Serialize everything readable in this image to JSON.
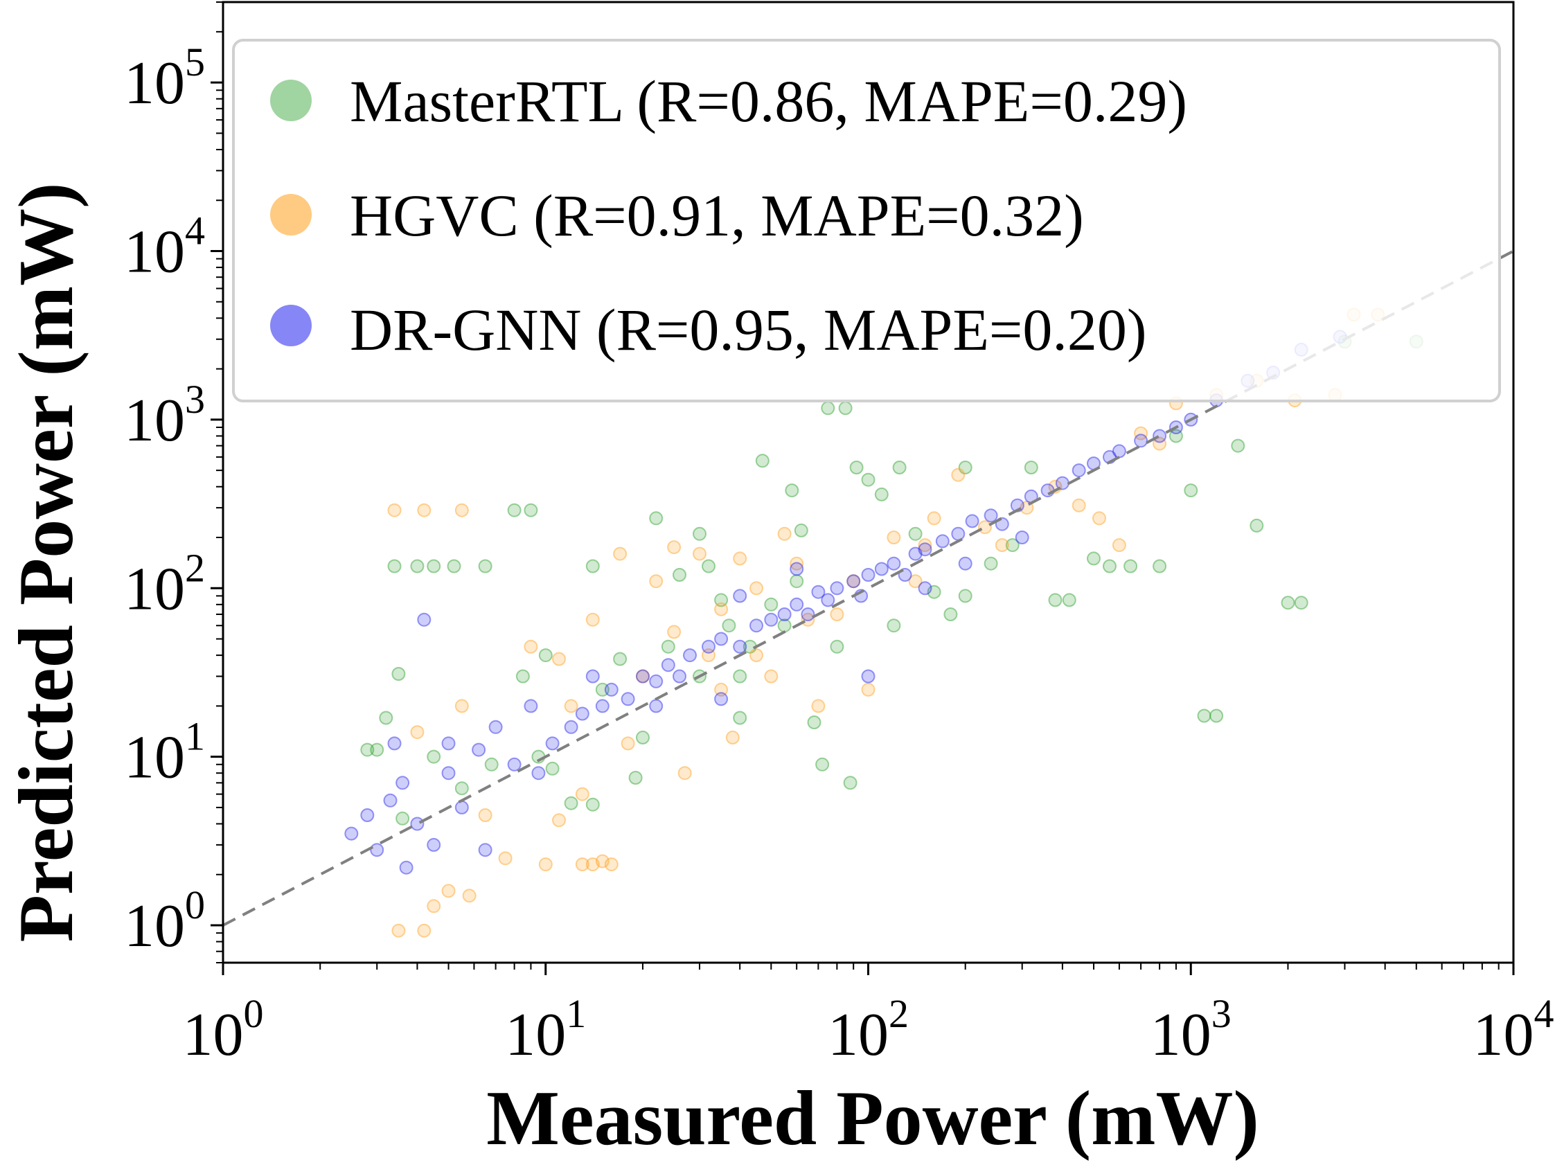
{
  "chart_data": {
    "type": "scatter",
    "xscale": "log",
    "yscale": "log",
    "xlabel": "Measured Power (mW)",
    "ylabel": "Predicted Power (mW)",
    "xlim": [
      1,
      10000
    ],
    "ylim": [
      0.6,
      300000
    ],
    "x_ticks": [
      {
        "base": "10",
        "exp": "0",
        "value": 1
      },
      {
        "base": "10",
        "exp": "1",
        "value": 10
      },
      {
        "base": "10",
        "exp": "2",
        "value": 100
      },
      {
        "base": "10",
        "exp": "3",
        "value": 1000
      },
      {
        "base": "10",
        "exp": "4",
        "value": 10000
      }
    ],
    "y_ticks": [
      {
        "base": "10",
        "exp": "0",
        "value": 1
      },
      {
        "base": "10",
        "exp": "1",
        "value": 10
      },
      {
        "base": "10",
        "exp": "2",
        "value": 100
      },
      {
        "base": "10",
        "exp": "3",
        "value": 1000
      },
      {
        "base": "10",
        "exp": "4",
        "value": 10000
      },
      {
        "base": "10",
        "exp": "5",
        "value": 100000
      }
    ],
    "reference_line": {
      "type": "y=x",
      "color": "#808080",
      "style": "dashed"
    },
    "legend": {
      "position": "top-left"
    },
    "series": [
      {
        "name": "MasterRTL (R=0.86, MAPE=0.29)",
        "color": "#2ca02c",
        "points": [
          [
            3.0,
            11
          ],
          [
            3.2,
            17
          ],
          [
            3.5,
            31
          ],
          [
            3.4,
            135
          ],
          [
            4.0,
            135
          ],
          [
            4.5,
            135
          ],
          [
            5.2,
            135
          ],
          [
            6.5,
            135
          ],
          [
            3.6,
            4.3
          ],
          [
            2.8,
            11
          ],
          [
            4.5,
            10
          ],
          [
            5.5,
            6.5
          ],
          [
            6.8,
            9
          ],
          [
            8.5,
            30
          ],
          [
            9.5,
            10
          ],
          [
            10.5,
            8.5
          ],
          [
            12,
            5.3
          ],
          [
            14,
            5.2
          ],
          [
            8.0,
            290
          ],
          [
            9.0,
            290
          ],
          [
            14,
            135
          ],
          [
            17,
            38
          ],
          [
            19,
            7.5
          ],
          [
            20,
            13
          ],
          [
            22,
            260
          ],
          [
            24,
            45
          ],
          [
            26,
            120
          ],
          [
            30,
            210
          ],
          [
            32,
            135
          ],
          [
            35,
            85
          ],
          [
            37,
            60
          ],
          [
            40,
            17
          ],
          [
            43,
            45
          ],
          [
            47,
            570
          ],
          [
            50,
            80
          ],
          [
            55,
            60
          ],
          [
            58,
            380
          ],
          [
            62,
            220
          ],
          [
            68,
            16
          ],
          [
            72,
            9
          ],
          [
            75,
            1170
          ],
          [
            85,
            1170
          ],
          [
            88,
            7
          ],
          [
            92,
            520
          ],
          [
            100,
            440
          ],
          [
            110,
            360
          ],
          [
            125,
            520
          ],
          [
            140,
            210
          ],
          [
            160,
            95
          ],
          [
            180,
            70
          ],
          [
            200,
            520
          ],
          [
            240,
            140
          ],
          [
            280,
            180
          ],
          [
            320,
            520
          ],
          [
            380,
            85
          ],
          [
            420,
            85
          ],
          [
            500,
            150
          ],
          [
            560,
            135
          ],
          [
            650,
            135
          ],
          [
            800,
            135
          ],
          [
            900,
            800
          ],
          [
            1000,
            380
          ],
          [
            1100,
            17.5
          ],
          [
            1200,
            17.5
          ],
          [
            1400,
            700
          ],
          [
            1600,
            235
          ],
          [
            2000,
            82
          ],
          [
            2200,
            82
          ],
          [
            3000,
            2900
          ],
          [
            5000,
            2900
          ],
          [
            40,
            30
          ],
          [
            120,
            60
          ],
          [
            200,
            90
          ],
          [
            80,
            45
          ],
          [
            60,
            110
          ],
          [
            30,
            30
          ],
          [
            15,
            25
          ],
          [
            10,
            40
          ]
        ]
      },
      {
        "name": "HGVC (R=0.91, MAPE=0.32)",
        "color": "#ff9f1c",
        "points": [
          [
            3.5,
            0.93
          ],
          [
            4.2,
            0.93
          ],
          [
            4.5,
            1.3
          ],
          [
            5.0,
            1.6
          ],
          [
            5.8,
            1.5
          ],
          [
            3.4,
            290
          ],
          [
            4.2,
            290
          ],
          [
            5.5,
            290
          ],
          [
            4.0,
            14
          ],
          [
            5.5,
            20
          ],
          [
            6.5,
            4.5
          ],
          [
            7.5,
            2.5
          ],
          [
            9.0,
            45
          ],
          [
            10,
            2.3
          ],
          [
            11,
            38
          ],
          [
            13,
            2.3
          ],
          [
            14,
            2.3
          ],
          [
            15,
            2.4
          ],
          [
            16,
            2.3
          ],
          [
            11,
            4.2
          ],
          [
            13,
            6
          ],
          [
            14,
            65
          ],
          [
            17,
            160
          ],
          [
            20,
            30
          ],
          [
            22,
            110
          ],
          [
            25,
            175
          ],
          [
            27,
            8
          ],
          [
            30,
            160
          ],
          [
            32,
            40
          ],
          [
            35,
            75
          ],
          [
            38,
            13
          ],
          [
            40,
            150
          ],
          [
            45,
            100
          ],
          [
            50,
            30
          ],
          [
            55,
            210
          ],
          [
            60,
            140
          ],
          [
            70,
            20
          ],
          [
            80,
            70
          ],
          [
            100,
            25
          ],
          [
            120,
            200
          ],
          [
            140,
            110
          ],
          [
            160,
            260
          ],
          [
            190,
            470
          ],
          [
            230,
            230
          ],
          [
            260,
            180
          ],
          [
            310,
            300
          ],
          [
            380,
            400
          ],
          [
            450,
            310
          ],
          [
            520,
            260
          ],
          [
            600,
            180
          ],
          [
            700,
            830
          ],
          [
            800,
            720
          ],
          [
            900,
            1250
          ],
          [
            1200,
            1400
          ],
          [
            1600,
            1700
          ],
          [
            2100,
            1300
          ],
          [
            2800,
            1400
          ],
          [
            3200,
            4200
          ],
          [
            3800,
            4200
          ],
          [
            12,
            20
          ],
          [
            18,
            12
          ],
          [
            25,
            55
          ],
          [
            45,
            40
          ],
          [
            65,
            65
          ],
          [
            35,
            25
          ],
          [
            90,
            110
          ],
          [
            150,
            180
          ]
        ]
      },
      {
        "name": "DR-GNN (R=0.95, MAPE=0.20)",
        "color": "#2222ee",
        "points": [
          [
            2.5,
            3.5
          ],
          [
            2.8,
            4.5
          ],
          [
            3.0,
            2.8
          ],
          [
            3.3,
            5.5
          ],
          [
            3.6,
            7
          ],
          [
            4.0,
            4
          ],
          [
            4.5,
            3
          ],
          [
            5.0,
            8
          ],
          [
            5.5,
            5
          ],
          [
            6.2,
            11
          ],
          [
            3.4,
            12
          ],
          [
            4.2,
            65
          ],
          [
            3.7,
            2.2
          ],
          [
            6.5,
            2.8
          ],
          [
            8.0,
            9
          ],
          [
            9.5,
            8
          ],
          [
            10.5,
            12
          ],
          [
            12,
            15
          ],
          [
            13,
            18
          ],
          [
            15,
            20
          ],
          [
            16,
            25
          ],
          [
            18,
            22
          ],
          [
            20,
            30
          ],
          [
            22,
            28
          ],
          [
            24,
            35
          ],
          [
            26,
            30
          ],
          [
            28,
            40
          ],
          [
            32,
            45
          ],
          [
            35,
            50
          ],
          [
            40,
            45
          ],
          [
            45,
            60
          ],
          [
            50,
            65
          ],
          [
            55,
            70
          ],
          [
            60,
            80
          ],
          [
            65,
            70
          ],
          [
            70,
            95
          ],
          [
            75,
            85
          ],
          [
            80,
            100
          ],
          [
            90,
            110
          ],
          [
            95,
            90
          ],
          [
            100,
            120
          ],
          [
            110,
            130
          ],
          [
            120,
            140
          ],
          [
            130,
            120
          ],
          [
            140,
            160
          ],
          [
            150,
            170
          ],
          [
            170,
            190
          ],
          [
            190,
            210
          ],
          [
            210,
            250
          ],
          [
            240,
            270
          ],
          [
            260,
            240
          ],
          [
            290,
            310
          ],
          [
            320,
            350
          ],
          [
            360,
            380
          ],
          [
            400,
            420
          ],
          [
            450,
            500
          ],
          [
            500,
            550
          ],
          [
            560,
            600
          ],
          [
            600,
            650
          ],
          [
            700,
            750
          ],
          [
            800,
            800
          ],
          [
            900,
            900
          ],
          [
            1000,
            1000
          ],
          [
            1200,
            1300
          ],
          [
            1500,
            1700
          ],
          [
            1800,
            1900
          ],
          [
            2200,
            2600
          ],
          [
            2900,
            3100
          ],
          [
            100,
            30
          ],
          [
            60,
            130
          ],
          [
            35,
            22
          ],
          [
            150,
            100
          ],
          [
            200,
            140
          ],
          [
            300,
            200
          ],
          [
            40,
            90
          ],
          [
            22,
            20
          ],
          [
            14,
            30
          ],
          [
            9,
            20
          ],
          [
            7,
            15
          ],
          [
            5,
            12
          ]
        ]
      }
    ]
  }
}
